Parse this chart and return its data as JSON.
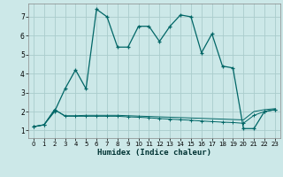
{
  "xlabel": "Humidex (Indice chaleur)",
  "background_color": "#cce8e8",
  "grid_color": "#aacccc",
  "line_color": "#006666",
  "xlim": [
    -0.5,
    23.5
  ],
  "ylim": [
    0.6,
    7.7
  ],
  "xticks": [
    0,
    1,
    2,
    3,
    4,
    5,
    6,
    7,
    8,
    9,
    10,
    11,
    12,
    13,
    14,
    15,
    16,
    17,
    18,
    19,
    20,
    21,
    22,
    23
  ],
  "yticks": [
    1,
    2,
    3,
    4,
    5,
    6,
    7
  ],
  "line1_x": [
    0,
    1,
    2,
    3,
    4,
    5,
    6,
    7,
    8,
    9,
    10,
    11,
    12,
    13,
    14,
    15,
    16,
    17,
    18,
    19,
    20,
    21,
    22,
    23
  ],
  "line1_y": [
    1.2,
    1.3,
    2.0,
    3.2,
    4.2,
    3.2,
    7.4,
    7.0,
    5.4,
    5.4,
    6.5,
    6.5,
    5.7,
    6.5,
    7.1,
    7.0,
    5.1,
    6.1,
    4.4,
    4.3,
    1.1,
    1.1,
    2.0,
    2.1
  ],
  "line2_x": [
    0,
    1,
    2,
    3,
    4,
    5,
    6,
    7,
    8,
    9,
    10,
    11,
    12,
    13,
    14,
    15,
    16,
    17,
    18,
    19,
    20,
    21,
    22,
    23
  ],
  "line2_y": [
    1.2,
    1.3,
    2.1,
    1.75,
    1.75,
    1.75,
    1.75,
    1.75,
    1.75,
    1.72,
    1.7,
    1.67,
    1.63,
    1.6,
    1.57,
    1.54,
    1.5,
    1.47,
    1.44,
    1.42,
    1.38,
    1.8,
    2.0,
    2.1
  ],
  "line3_x": [
    0,
    1,
    2,
    3,
    4,
    5,
    6,
    7,
    8,
    9,
    10,
    11,
    12,
    13,
    14,
    15,
    16,
    17,
    18,
    19,
    20,
    21,
    22,
    23
  ],
  "line3_y": [
    1.2,
    1.3,
    2.1,
    1.78,
    1.78,
    1.8,
    1.8,
    1.8,
    1.8,
    1.78,
    1.76,
    1.74,
    1.72,
    1.7,
    1.68,
    1.66,
    1.64,
    1.62,
    1.6,
    1.58,
    1.56,
    2.0,
    2.1,
    2.15
  ]
}
